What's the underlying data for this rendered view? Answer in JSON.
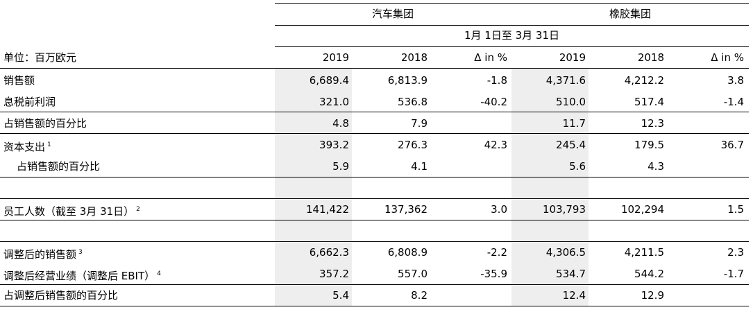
{
  "header": {
    "group_auto": "汽车集团",
    "group_rubber": "橡胶集团",
    "period": "1月 1日至 3月 31日",
    "unit": "单位：百万欧元",
    "cols": [
      "2019",
      "2018",
      "Δ in %",
      "2019",
      "2018",
      "Δ in %"
    ]
  },
  "rows": [
    {
      "label": "销售额",
      "sup": "",
      "values": [
        "6,689.4",
        "6,813.9",
        "-1.8",
        "4,371.6",
        "4,212.2",
        "3.8"
      ]
    },
    {
      "label": "息税前利润",
      "sup": "",
      "values": [
        "321.0",
        "536.8",
        "-40.2",
        "510.0",
        "517.4",
        "-1.4"
      ]
    },
    {
      "label": "占销售额的百分比",
      "sup": "",
      "values": [
        "4.8",
        "7.9",
        "",
        "11.7",
        "12.3",
        ""
      ]
    },
    {
      "label": "资本支出",
      "sup": "1",
      "values": [
        "393.2",
        "276.3",
        "42.3",
        "245.4",
        "179.5",
        "36.7"
      ]
    },
    {
      "label": "占销售额的百分比",
      "sup": "",
      "values": [
        "5.9",
        "4.1",
        "",
        "5.6",
        "4.3",
        ""
      ]
    },
    {
      "label": "员工人数（截至 3月 31日）",
      "sup": "2",
      "values": [
        "141,422",
        "137,362",
        "3.0",
        "103,793",
        "102,294",
        "1.5"
      ]
    },
    {
      "label": "调整后的销售额",
      "sup": "3",
      "values": [
        "6,662.3",
        "6,808.9",
        "-2.2",
        "4,306.5",
        "4,211.5",
        "2.3"
      ]
    },
    {
      "label": "调整后经营业绩（调整后 EBIT）",
      "sup": "4",
      "values": [
        "357.2",
        "557.0",
        "-35.9",
        "534.7",
        "544.2",
        "-1.7"
      ]
    },
    {
      "label": "占调整后销售额的百分比",
      "sup": "",
      "values": [
        "5.4",
        "8.2",
        "",
        "12.4",
        "12.9",
        ""
      ]
    }
  ]
}
